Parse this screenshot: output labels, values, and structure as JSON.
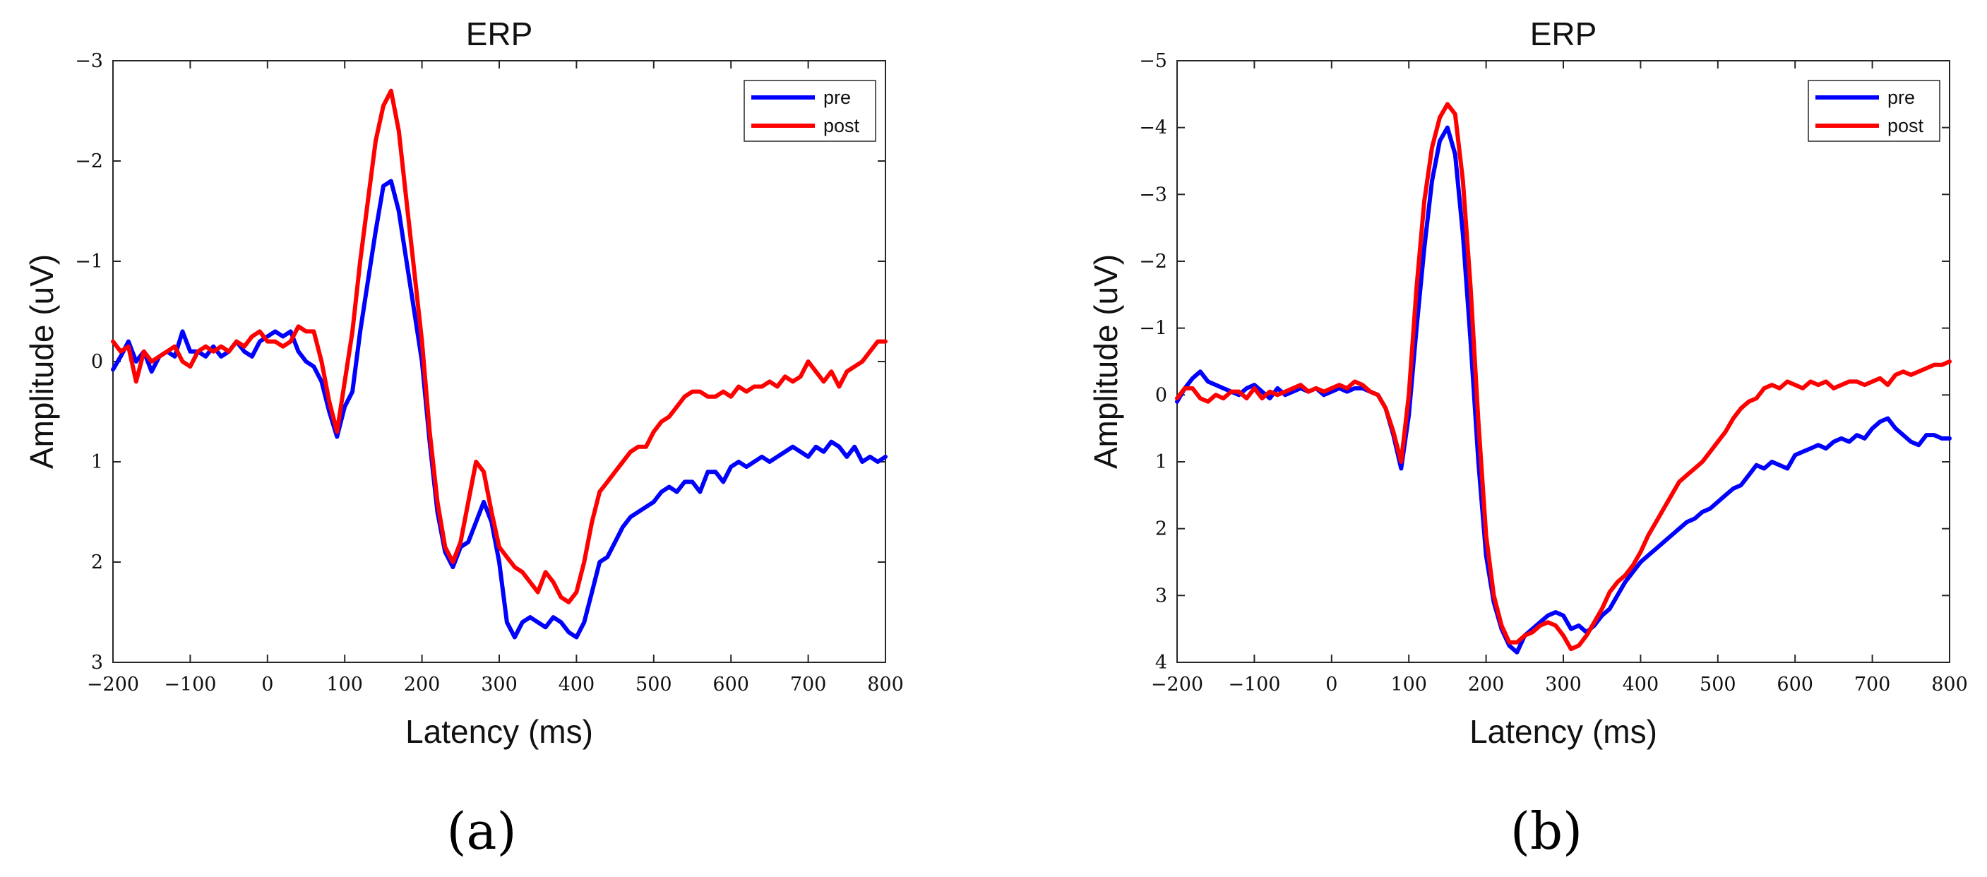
{
  "figure": {
    "panel_labels": [
      "(a)",
      "(b)"
    ]
  },
  "chart_data": [
    {
      "type": "line",
      "title": "ERP",
      "xlabel": "Latency (ms)",
      "ylabel": "Amplitude (uV)",
      "xlim": [
        -200,
        800
      ],
      "ylim": [
        -3,
        3
      ],
      "y_reversed": true,
      "xticks": [
        -200,
        -100,
        0,
        100,
        200,
        300,
        400,
        500,
        600,
        700,
        800
      ],
      "xtick_labels": [
        "−200",
        "−100",
        "0",
        "100",
        "200",
        "300",
        "400",
        "500",
        "600",
        "700",
        "800"
      ],
      "yticks": [
        -3,
        -2,
        -1,
        0,
        1,
        2,
        3
      ],
      "ytick_labels": [
        "−3",
        "−2",
        "−1",
        "0",
        "1",
        "2",
        "3"
      ],
      "legend_position": "top-right",
      "series": [
        {
          "name": "pre",
          "color": "#0000ff",
          "x": [
            -200,
            -190,
            -180,
            -170,
            -160,
            -150,
            -140,
            -130,
            -120,
            -110,
            -100,
            -90,
            -80,
            -70,
            -60,
            -50,
            -40,
            -30,
            -20,
            -10,
            0,
            10,
            20,
            30,
            40,
            50,
            60,
            70,
            80,
            90,
            100,
            110,
            120,
            130,
            140,
            150,
            160,
            170,
            180,
            190,
            200,
            210,
            220,
            230,
            240,
            250,
            260,
            270,
            280,
            290,
            300,
            310,
            320,
            330,
            340,
            350,
            360,
            370,
            380,
            390,
            400,
            410,
            420,
            430,
            440,
            450,
            460,
            470,
            480,
            490,
            500,
            510,
            520,
            530,
            540,
            550,
            560,
            570,
            580,
            590,
            600,
            610,
            620,
            630,
            640,
            650,
            660,
            670,
            680,
            690,
            700,
            710,
            720,
            730,
            740,
            750,
            760,
            770,
            780,
            790,
            800
          ],
          "y": [
            0.08,
            -0.05,
            -0.2,
            0.0,
            -0.1,
            0.1,
            -0.05,
            -0.1,
            -0.05,
            -0.3,
            -0.1,
            -0.1,
            -0.05,
            -0.15,
            -0.05,
            -0.1,
            -0.2,
            -0.1,
            -0.05,
            -0.2,
            -0.25,
            -0.3,
            -0.25,
            -0.3,
            -0.1,
            0.0,
            0.05,
            0.2,
            0.5,
            0.75,
            0.45,
            0.3,
            -0.3,
            -0.8,
            -1.3,
            -1.75,
            -1.8,
            -1.5,
            -1.0,
            -0.5,
            0.0,
            0.8,
            1.5,
            1.9,
            2.05,
            1.85,
            1.8,
            1.6,
            1.4,
            1.6,
            2.0,
            2.6,
            2.75,
            2.6,
            2.55,
            2.6,
            2.65,
            2.55,
            2.6,
            2.7,
            2.75,
            2.6,
            2.3,
            2.0,
            1.95,
            1.8,
            1.65,
            1.55,
            1.5,
            1.45,
            1.4,
            1.3,
            1.25,
            1.3,
            1.2,
            1.2,
            1.3,
            1.1,
            1.1,
            1.2,
            1.05,
            1.0,
            1.05,
            1.0,
            0.95,
            1.0,
            0.95,
            0.9,
            0.85,
            0.9,
            0.95,
            0.85,
            0.9,
            0.8,
            0.85,
            0.95,
            0.85,
            1.0,
            0.95,
            1.0,
            0.95
          ]
        },
        {
          "name": "post",
          "color": "#ff0000",
          "x": [
            -200,
            -190,
            -180,
            -170,
            -160,
            -150,
            -140,
            -130,
            -120,
            -110,
            -100,
            -90,
            -80,
            -70,
            -60,
            -50,
            -40,
            -30,
            -20,
            -10,
            0,
            10,
            20,
            30,
            40,
            50,
            60,
            70,
            80,
            90,
            100,
            110,
            120,
            130,
            140,
            150,
            160,
            170,
            180,
            190,
            200,
            210,
            220,
            230,
            240,
            250,
            260,
            270,
            280,
            290,
            300,
            310,
            320,
            330,
            340,
            350,
            360,
            370,
            380,
            390,
            400,
            410,
            420,
            430,
            440,
            450,
            460,
            470,
            480,
            490,
            500,
            510,
            520,
            530,
            540,
            550,
            560,
            570,
            580,
            590,
            600,
            610,
            620,
            630,
            640,
            650,
            660,
            670,
            680,
            690,
            700,
            710,
            720,
            730,
            740,
            750,
            760,
            770,
            780,
            790,
            800
          ],
          "y": [
            -0.2,
            -0.1,
            -0.15,
            0.2,
            -0.1,
            0.0,
            -0.05,
            -0.1,
            -0.15,
            0.0,
            0.05,
            -0.1,
            -0.15,
            -0.1,
            -0.15,
            -0.1,
            -0.2,
            -0.15,
            -0.25,
            -0.3,
            -0.2,
            -0.2,
            -0.15,
            -0.2,
            -0.35,
            -0.3,
            -0.3,
            0.0,
            0.4,
            0.7,
            0.2,
            -0.3,
            -1.0,
            -1.6,
            -2.2,
            -2.55,
            -2.7,
            -2.3,
            -1.6,
            -0.9,
            -0.2,
            0.7,
            1.4,
            1.85,
            2.0,
            1.8,
            1.4,
            1.0,
            1.1,
            1.5,
            1.85,
            1.95,
            2.05,
            2.1,
            2.2,
            2.3,
            2.1,
            2.2,
            2.35,
            2.4,
            2.3,
            2.0,
            1.6,
            1.3,
            1.2,
            1.1,
            1.0,
            0.9,
            0.85,
            0.85,
            0.7,
            0.6,
            0.55,
            0.45,
            0.35,
            0.3,
            0.3,
            0.35,
            0.35,
            0.3,
            0.35,
            0.25,
            0.3,
            0.25,
            0.25,
            0.2,
            0.25,
            0.15,
            0.2,
            0.15,
            0.0,
            0.1,
            0.2,
            0.1,
            0.25,
            0.1,
            0.05,
            0.0,
            -0.1,
            -0.2,
            -0.2
          ]
        }
      ]
    },
    {
      "type": "line",
      "title": "ERP",
      "xlabel": "Latency (ms)",
      "ylabel": "Amplitude (uV)",
      "xlim": [
        -200,
        800
      ],
      "ylim": [
        -5,
        4
      ],
      "y_reversed": true,
      "xticks": [
        -200,
        -100,
        0,
        100,
        200,
        300,
        400,
        500,
        600,
        700,
        800
      ],
      "xtick_labels": [
        "−200",
        "−100",
        "0",
        "100",
        "200",
        "300",
        "400",
        "500",
        "600",
        "700",
        "800"
      ],
      "yticks": [
        -5,
        -4,
        -3,
        -2,
        -1,
        0,
        1,
        2,
        3,
        4
      ],
      "ytick_labels": [
        "−5",
        "−4",
        "−3",
        "−2",
        "−1",
        "0",
        "1",
        "2",
        "3",
        "4"
      ],
      "legend_position": "top-right",
      "series": [
        {
          "name": "pre",
          "color": "#0000ff",
          "x": [
            -200,
            -190,
            -180,
            -170,
            -160,
            -150,
            -140,
            -130,
            -120,
            -110,
            -100,
            -90,
            -80,
            -70,
            -60,
            -50,
            -40,
            -30,
            -20,
            -10,
            0,
            10,
            20,
            30,
            40,
            50,
            60,
            70,
            80,
            90,
            100,
            110,
            120,
            130,
            140,
            150,
            160,
            170,
            180,
            190,
            200,
            210,
            220,
            230,
            240,
            250,
            260,
            270,
            280,
            290,
            300,
            310,
            320,
            330,
            340,
            350,
            360,
            370,
            380,
            390,
            400,
            410,
            420,
            430,
            440,
            450,
            460,
            470,
            480,
            490,
            500,
            510,
            520,
            530,
            540,
            550,
            560,
            570,
            580,
            590,
            600,
            610,
            620,
            630,
            640,
            650,
            660,
            670,
            680,
            690,
            700,
            710,
            720,
            730,
            740,
            750,
            760,
            770,
            780,
            790,
            800
          ],
          "y": [
            0.1,
            -0.1,
            -0.25,
            -0.35,
            -0.2,
            -0.15,
            -0.1,
            -0.05,
            0.0,
            -0.1,
            -0.15,
            -0.05,
            0.05,
            -0.1,
            0.0,
            -0.05,
            -0.1,
            -0.05,
            -0.1,
            0.0,
            -0.05,
            -0.1,
            -0.05,
            -0.1,
            -0.1,
            -0.05,
            0.0,
            0.2,
            0.6,
            1.1,
            0.3,
            -1.0,
            -2.2,
            -3.2,
            -3.8,
            -4.0,
            -3.6,
            -2.4,
            -0.8,
            1.0,
            2.4,
            3.1,
            3.5,
            3.75,
            3.85,
            3.6,
            3.5,
            3.4,
            3.3,
            3.25,
            3.3,
            3.5,
            3.45,
            3.55,
            3.45,
            3.3,
            3.2,
            3.0,
            2.8,
            2.65,
            2.5,
            2.4,
            2.3,
            2.2,
            2.1,
            2.0,
            1.9,
            1.85,
            1.75,
            1.7,
            1.6,
            1.5,
            1.4,
            1.35,
            1.2,
            1.05,
            1.1,
            1.0,
            1.05,
            1.1,
            0.9,
            0.85,
            0.8,
            0.75,
            0.8,
            0.7,
            0.65,
            0.7,
            0.6,
            0.65,
            0.5,
            0.4,
            0.35,
            0.5,
            0.6,
            0.7,
            0.75,
            0.6,
            0.6,
            0.65,
            0.65
          ]
        },
        {
          "name": "post",
          "color": "#ff0000",
          "x": [
            -200,
            -190,
            -180,
            -170,
            -160,
            -150,
            -140,
            -130,
            -120,
            -110,
            -100,
            -90,
            -80,
            -70,
            -60,
            -50,
            -40,
            -30,
            -20,
            -10,
            0,
            10,
            20,
            30,
            40,
            50,
            60,
            70,
            80,
            90,
            100,
            110,
            120,
            130,
            140,
            150,
            160,
            170,
            180,
            190,
            200,
            210,
            220,
            230,
            240,
            250,
            260,
            270,
            280,
            290,
            300,
            310,
            320,
            330,
            340,
            350,
            360,
            370,
            380,
            390,
            400,
            410,
            420,
            430,
            440,
            450,
            460,
            470,
            480,
            490,
            500,
            510,
            520,
            530,
            540,
            550,
            560,
            570,
            580,
            590,
            600,
            610,
            620,
            630,
            640,
            650,
            660,
            670,
            680,
            690,
            700,
            710,
            720,
            730,
            740,
            750,
            760,
            770,
            780,
            790,
            800
          ],
          "y": [
            0.05,
            -0.1,
            -0.1,
            0.05,
            0.1,
            0.0,
            0.05,
            -0.05,
            -0.05,
            0.05,
            -0.1,
            0.05,
            -0.05,
            0.0,
            -0.05,
            -0.1,
            -0.15,
            -0.05,
            -0.1,
            -0.05,
            -0.1,
            -0.15,
            -0.1,
            -0.2,
            -0.15,
            -0.05,
            0.0,
            0.2,
            0.55,
            1.0,
            0.0,
            -1.6,
            -2.9,
            -3.7,
            -4.15,
            -4.35,
            -4.2,
            -3.2,
            -1.6,
            0.4,
            2.1,
            3.0,
            3.45,
            3.7,
            3.7,
            3.6,
            3.55,
            3.45,
            3.4,
            3.45,
            3.6,
            3.8,
            3.75,
            3.6,
            3.4,
            3.2,
            2.95,
            2.8,
            2.7,
            2.55,
            2.35,
            2.1,
            1.9,
            1.7,
            1.5,
            1.3,
            1.2,
            1.1,
            1.0,
            0.85,
            0.7,
            0.55,
            0.35,
            0.2,
            0.1,
            0.05,
            -0.1,
            -0.15,
            -0.1,
            -0.2,
            -0.15,
            -0.1,
            -0.2,
            -0.15,
            -0.2,
            -0.1,
            -0.15,
            -0.2,
            -0.2,
            -0.15,
            -0.2,
            -0.25,
            -0.15,
            -0.3,
            -0.35,
            -0.3,
            -0.35,
            -0.4,
            -0.45,
            -0.45,
            -0.5
          ]
        }
      ]
    }
  ]
}
